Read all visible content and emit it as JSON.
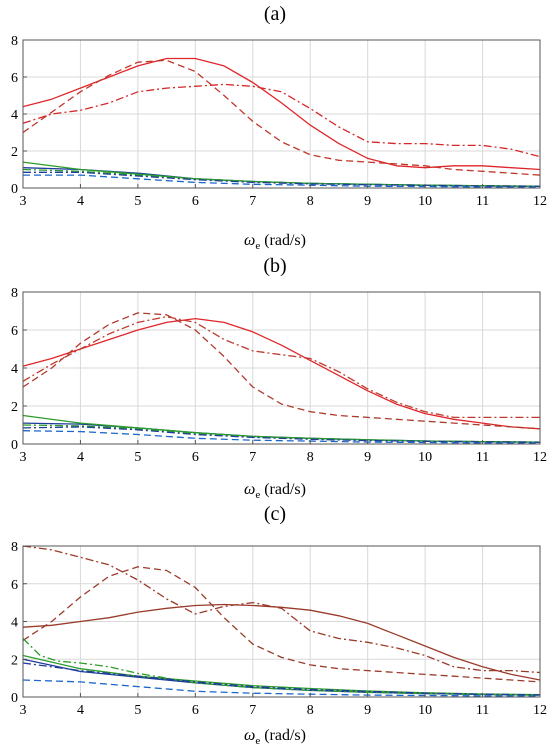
{
  "chart_data": [
    {
      "type": "line",
      "panel_label": "(a)",
      "xlabel_symbol": "ω",
      "xlabel_sub": "e",
      "xlabel_unit": " (rad/s)",
      "xlim": [
        3,
        12
      ],
      "ylim": [
        0,
        8
      ],
      "x_ticks": [
        3,
        4,
        5,
        6,
        7,
        8,
        9,
        10,
        11,
        12
      ],
      "y_ticks": [
        0,
        2,
        4,
        6,
        8
      ],
      "grid": true,
      "series": [
        {
          "color": "#e0262b",
          "dash": "solid",
          "x": [
            3,
            3.5,
            4,
            4.5,
            5,
            5.5,
            6,
            6.5,
            7,
            7.5,
            8,
            8.5,
            9,
            9.5,
            10,
            10.5,
            11,
            11.5,
            12
          ],
          "y": [
            4.4,
            4.8,
            5.4,
            6.0,
            6.6,
            7.0,
            7.0,
            6.6,
            5.7,
            4.6,
            3.4,
            2.4,
            1.6,
            1.2,
            1.1,
            1.2,
            1.2,
            1.1,
            1.0
          ]
        },
        {
          "color": "#c0392b",
          "dash": "dashed",
          "x": [
            3,
            3.5,
            4,
            4.5,
            5,
            5.5,
            6,
            6.5,
            7,
            7.5,
            8,
            8.5,
            9,
            9.5,
            10,
            10.5,
            11,
            11.5,
            12
          ],
          "y": [
            3.0,
            4.1,
            5.2,
            6.1,
            6.8,
            6.9,
            6.3,
            5.0,
            3.6,
            2.5,
            1.8,
            1.5,
            1.4,
            1.3,
            1.2,
            1.0,
            0.9,
            0.8,
            0.7
          ]
        },
        {
          "color": "#d62728",
          "dash": "dashdot",
          "x": [
            3,
            3.5,
            4,
            4.5,
            5,
            5.5,
            6,
            6.5,
            7,
            7.5,
            8,
            8.5,
            9,
            9.5,
            10,
            10.5,
            11,
            11.5,
            12
          ],
          "y": [
            3.5,
            4.0,
            4.2,
            4.6,
            5.2,
            5.4,
            5.5,
            5.6,
            5.5,
            5.2,
            4.3,
            3.3,
            2.5,
            2.4,
            2.4,
            2.3,
            2.3,
            2.1,
            1.7
          ]
        },
        {
          "color": "#1f3d99",
          "dash": "solid",
          "x": [
            3,
            4,
            5,
            6,
            7,
            8,
            9,
            10,
            11,
            12
          ],
          "y": [
            1.1,
            1.0,
            0.8,
            0.5,
            0.35,
            0.25,
            0.2,
            0.15,
            0.12,
            0.1
          ]
        },
        {
          "color": "#2a9d2a",
          "dash": "solid",
          "x": [
            3,
            4,
            5,
            6,
            7,
            8,
            9,
            10,
            11,
            12
          ],
          "y": [
            1.4,
            1.0,
            0.75,
            0.5,
            0.35,
            0.25,
            0.2,
            0.15,
            0.12,
            0.1
          ]
        },
        {
          "color": "#1a66cc",
          "dash": "dashed",
          "x": [
            3,
            4,
            5,
            6,
            7,
            8,
            9,
            10,
            11,
            12
          ],
          "y": [
            0.7,
            0.7,
            0.5,
            0.3,
            0.2,
            0.15,
            0.1,
            0.08,
            0.06,
            0.05
          ]
        },
        {
          "color": "#2a9d2a",
          "dash": "dashdot",
          "x": [
            3,
            4,
            5,
            6,
            7,
            8,
            9,
            10,
            11,
            12
          ],
          "y": [
            1.0,
            0.9,
            0.7,
            0.5,
            0.35,
            0.25,
            0.2,
            0.15,
            0.12,
            0.1
          ]
        },
        {
          "color": "#1f3d99",
          "dash": "dashdot",
          "x": [
            3,
            4,
            5,
            6,
            7,
            8,
            9,
            10,
            11,
            12
          ],
          "y": [
            0.85,
            0.85,
            0.65,
            0.45,
            0.3,
            0.22,
            0.18,
            0.14,
            0.11,
            0.09
          ]
        }
      ]
    },
    {
      "type": "line",
      "panel_label": "(b)",
      "xlabel_symbol": "ω",
      "xlabel_sub": "e",
      "xlabel_unit": " (rad/s)",
      "xlim": [
        3,
        12
      ],
      "ylim": [
        0,
        8
      ],
      "x_ticks": [
        3,
        4,
        5,
        6,
        7,
        8,
        9,
        10,
        11,
        12
      ],
      "y_ticks": [
        0,
        2,
        4,
        6,
        8
      ],
      "grid": true,
      "series": [
        {
          "color": "#e0262b",
          "dash": "solid",
          "x": [
            3,
            3.5,
            4,
            4.5,
            5,
            5.5,
            6,
            6.5,
            7,
            7.5,
            8,
            8.5,
            9,
            9.5,
            10,
            10.5,
            11,
            11.5,
            12
          ],
          "y": [
            4.1,
            4.5,
            5.0,
            5.5,
            6.0,
            6.4,
            6.6,
            6.4,
            5.9,
            5.2,
            4.4,
            3.6,
            2.8,
            2.1,
            1.6,
            1.3,
            1.1,
            0.9,
            0.8
          ]
        },
        {
          "color": "#b03a2e",
          "dash": "dashed",
          "x": [
            3,
            3.5,
            4,
            4.5,
            5,
            5.5,
            6,
            6.5,
            7,
            7.5,
            8,
            8.5,
            9,
            9.5,
            10,
            10.5,
            11,
            11.5,
            12
          ],
          "y": [
            3.0,
            4.0,
            5.3,
            6.3,
            6.9,
            6.8,
            6.0,
            4.6,
            3.0,
            2.1,
            1.7,
            1.5,
            1.4,
            1.3,
            1.2,
            1.1,
            1.0,
            0.9,
            0.8
          ]
        },
        {
          "color": "#c0392b",
          "dash": "dashdot",
          "x": [
            3,
            3.5,
            4,
            4.5,
            5,
            5.5,
            6,
            6.5,
            7,
            7.5,
            8,
            8.5,
            9,
            9.5,
            10,
            10.5,
            11,
            11.5,
            12
          ],
          "y": [
            3.3,
            4.2,
            5.0,
            5.8,
            6.4,
            6.7,
            6.4,
            5.5,
            4.9,
            4.7,
            4.5,
            3.8,
            2.9,
            2.2,
            1.7,
            1.4,
            1.4,
            1.4,
            1.4
          ]
        },
        {
          "color": "#1f3d99",
          "dash": "solid",
          "x": [
            3,
            4,
            5,
            6,
            7,
            8,
            9,
            10,
            11,
            12
          ],
          "y": [
            1.1,
            1.05,
            0.85,
            0.6,
            0.4,
            0.3,
            0.22,
            0.16,
            0.12,
            0.1
          ]
        },
        {
          "color": "#2a9d2a",
          "dash": "solid",
          "x": [
            3,
            4,
            5,
            6,
            7,
            8,
            9,
            10,
            11,
            12
          ],
          "y": [
            1.5,
            1.1,
            0.85,
            0.6,
            0.4,
            0.3,
            0.22,
            0.16,
            0.12,
            0.1
          ]
        },
        {
          "color": "#1a66cc",
          "dash": "dashed",
          "x": [
            3,
            4,
            5,
            6,
            7,
            8,
            9,
            10,
            11,
            12
          ],
          "y": [
            0.7,
            0.65,
            0.5,
            0.3,
            0.2,
            0.15,
            0.1,
            0.08,
            0.06,
            0.05
          ]
        },
        {
          "color": "#2a9d2a",
          "dash": "dashdot",
          "x": [
            3,
            4,
            5,
            6,
            7,
            8,
            9,
            10,
            11,
            12
          ],
          "y": [
            1.0,
            0.95,
            0.8,
            0.55,
            0.38,
            0.28,
            0.2,
            0.15,
            0.12,
            0.1
          ]
        },
        {
          "color": "#1f3d99",
          "dash": "dashdot",
          "x": [
            3,
            4,
            5,
            6,
            7,
            8,
            9,
            10,
            11,
            12
          ],
          "y": [
            0.85,
            0.9,
            0.75,
            0.5,
            0.35,
            0.25,
            0.18,
            0.14,
            0.11,
            0.09
          ]
        }
      ]
    },
    {
      "type": "line",
      "panel_label": "(c)",
      "xlabel_symbol": "ω",
      "xlabel_sub": "e",
      "xlabel_unit": " (rad/s)",
      "xlim": [
        3,
        12
      ],
      "ylim": [
        0,
        8
      ],
      "x_ticks": [
        3,
        4,
        5,
        6,
        7,
        8,
        9,
        10,
        11,
        12
      ],
      "y_ticks": [
        0,
        2,
        4,
        6,
        8
      ],
      "grid": true,
      "series": [
        {
          "color": "#9a3b2a",
          "dash": "solid",
          "x": [
            3,
            3.5,
            4,
            4.5,
            5,
            5.5,
            6,
            6.5,
            7,
            7.5,
            8,
            8.5,
            9,
            9.5,
            10,
            10.5,
            11,
            11.5,
            12
          ],
          "y": [
            3.7,
            3.8,
            4.0,
            4.2,
            4.5,
            4.7,
            4.85,
            4.9,
            4.85,
            4.75,
            4.6,
            4.3,
            3.9,
            3.3,
            2.7,
            2.1,
            1.6,
            1.2,
            0.9
          ]
        },
        {
          "color": "#9a3b2a",
          "dash": "dashed",
          "x": [
            3,
            3.5,
            4,
            4.5,
            5,
            5.5,
            6,
            6.5,
            7,
            7.5,
            8,
            8.5,
            9,
            9.5,
            10,
            10.5,
            11,
            11.5,
            12
          ],
          "y": [
            3.0,
            4.0,
            5.3,
            6.4,
            6.9,
            6.7,
            5.8,
            4.2,
            2.8,
            2.1,
            1.7,
            1.5,
            1.4,
            1.3,
            1.2,
            1.1,
            1.0,
            0.9,
            0.8
          ]
        },
        {
          "color": "#9a3b2a",
          "dash": "dashdot",
          "x": [
            3,
            3.5,
            4,
            4.5,
            5,
            5.5,
            6,
            6.5,
            7,
            7.5,
            8,
            8.5,
            9,
            9.5,
            10,
            10.5,
            11,
            11.5,
            12
          ],
          "y": [
            8.0,
            7.8,
            7.4,
            7.0,
            6.2,
            5.2,
            4.4,
            4.8,
            5.0,
            4.7,
            3.5,
            3.1,
            2.9,
            2.6,
            2.2,
            1.6,
            1.4,
            1.4,
            1.3
          ]
        },
        {
          "color": "#1f3d99",
          "dash": "solid",
          "x": [
            3,
            4,
            5,
            6,
            7,
            8,
            9,
            10,
            11,
            12
          ],
          "y": [
            2.0,
            1.35,
            1.05,
            0.75,
            0.5,
            0.35,
            0.25,
            0.18,
            0.13,
            0.1
          ]
        },
        {
          "color": "#2a9d2a",
          "dash": "solid",
          "x": [
            3,
            4,
            5,
            6,
            7,
            8,
            9,
            10,
            11,
            12
          ],
          "y": [
            2.2,
            1.5,
            1.1,
            0.85,
            0.6,
            0.45,
            0.32,
            0.22,
            0.16,
            0.12
          ]
        },
        {
          "color": "#1a66cc",
          "dash": "dashed",
          "x": [
            3,
            4,
            5,
            6,
            7,
            8,
            9,
            10,
            11,
            12
          ],
          "y": [
            0.9,
            0.8,
            0.55,
            0.3,
            0.2,
            0.15,
            0.1,
            0.08,
            0.06,
            0.05
          ]
        },
        {
          "color": "#2a9d2a",
          "dash": "dashdot",
          "x": [
            3,
            3.3,
            3.6,
            4,
            4.5,
            5,
            6,
            7,
            8,
            9,
            10,
            11,
            12
          ],
          "y": [
            3.1,
            2.2,
            1.9,
            1.8,
            1.6,
            1.25,
            0.75,
            0.5,
            0.35,
            0.25,
            0.18,
            0.13,
            0.1
          ]
        },
        {
          "color": "#1f3d99",
          "dash": "dashdot",
          "x": [
            3,
            4,
            5,
            6,
            7,
            8,
            9,
            10,
            11,
            12
          ],
          "y": [
            1.8,
            1.4,
            1.1,
            0.8,
            0.55,
            0.4,
            0.3,
            0.2,
            0.15,
            0.11
          ]
        }
      ]
    }
  ]
}
